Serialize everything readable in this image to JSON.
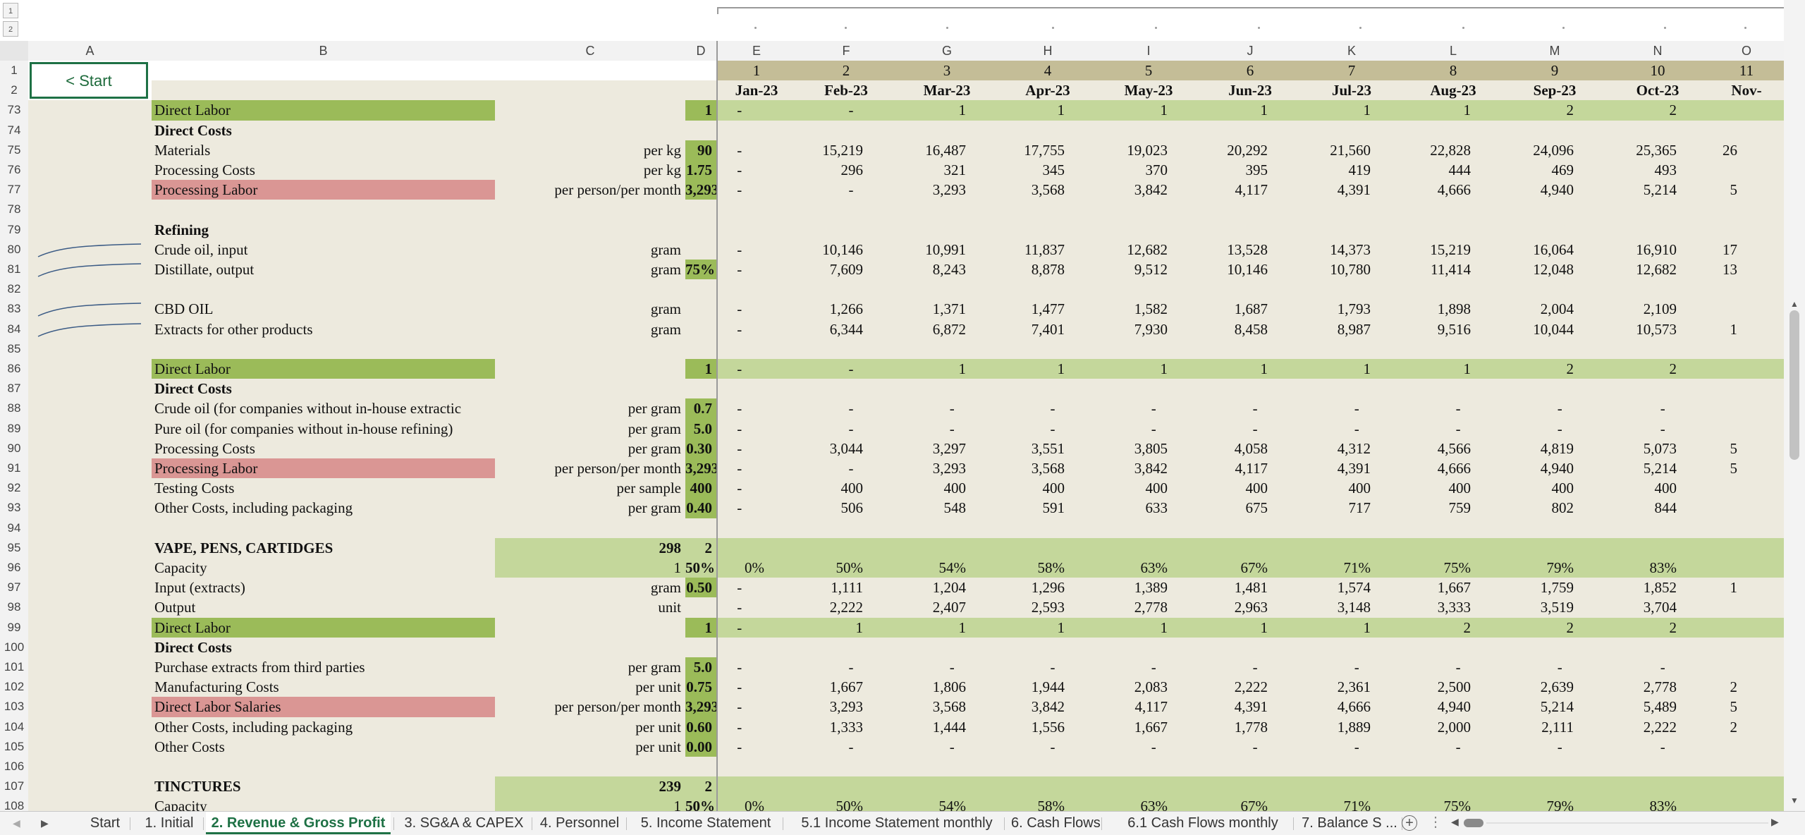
{
  "outline_levels": [
    "1",
    "2"
  ],
  "start_button": "< Start",
  "columns": [
    "A",
    "B",
    "C",
    "D",
    "E",
    "F",
    "G",
    "H",
    "I",
    "J",
    "K",
    "L",
    "M",
    "N",
    "O"
  ],
  "row1_months": [
    "1",
    "2",
    "3",
    "4",
    "5",
    "6",
    "7",
    "8",
    "9",
    "10",
    "11"
  ],
  "row2_dates": [
    "Jan-23",
    "Feb-23",
    "Mar-23",
    "Apr-23",
    "May-23",
    "Jun-23",
    "Jul-23",
    "Aug-23",
    "Sep-23",
    "Oct-23",
    "Nov-"
  ],
  "rows": [
    {
      "n": "73",
      "label": "Direct Labor",
      "labelStyle": "green",
      "c": "",
      "d": "1",
      "dStyle": "green",
      "rowStyle": "lightgreen",
      "vals": [
        "-",
        "-",
        "1",
        "1",
        "1",
        "1",
        "1",
        "1",
        "2",
        "2",
        ""
      ]
    },
    {
      "n": "74",
      "label": "Direct Costs",
      "bold": true,
      "vals": []
    },
    {
      "n": "75",
      "label": "Materials",
      "c": "per kg",
      "d": "90",
      "dStyle": "green",
      "vals": [
        "-",
        "15,219",
        "16,487",
        "17,755",
        "19,023",
        "20,292",
        "21,560",
        "22,828",
        "24,096",
        "25,365",
        "26"
      ]
    },
    {
      "n": "76",
      "label": "Processing Costs",
      "c": "per kg",
      "d": "1.75",
      "dStyle": "green",
      "vals": [
        "-",
        "296",
        "321",
        "345",
        "370",
        "395",
        "419",
        "444",
        "469",
        "493",
        ""
      ]
    },
    {
      "n": "77",
      "label": "Processing Labor",
      "labelStyle": "red",
      "c": "per person/per month",
      "d": "3,293",
      "dStyle": "green",
      "vals": [
        "-",
        "-",
        "3,293",
        "3,568",
        "3,842",
        "4,117",
        "4,391",
        "4,666",
        "4,940",
        "5,214",
        "5"
      ]
    },
    {
      "n": "78",
      "label": "",
      "vals": []
    },
    {
      "n": "79",
      "label": "Refining",
      "bold": true,
      "vals": []
    },
    {
      "n": "80",
      "label": "Crude oil, input",
      "c": "gram",
      "d": "",
      "spark": true,
      "vals": [
        "-",
        "10,146",
        "10,991",
        "11,837",
        "12,682",
        "13,528",
        "14,373",
        "15,219",
        "16,064",
        "16,910",
        "17"
      ]
    },
    {
      "n": "81",
      "label": "Distillate, output",
      "c": "gram",
      "d": "75%",
      "dStyle": "green",
      "spark": true,
      "vals": [
        "-",
        "7,609",
        "8,243",
        "8,878",
        "9,512",
        "10,146",
        "10,780",
        "11,414",
        "12,048",
        "12,682",
        "13"
      ]
    },
    {
      "n": "82",
      "label": "",
      "vals": []
    },
    {
      "n": "83",
      "label": "CBD OIL",
      "c": "gram",
      "d": "",
      "spark": true,
      "vals": [
        "-",
        "1,266",
        "1,371",
        "1,477",
        "1,582",
        "1,687",
        "1,793",
        "1,898",
        "2,004",
        "2,109",
        ""
      ]
    },
    {
      "n": "84",
      "label": "Extracts for other products",
      "c": "gram",
      "d": "",
      "spark": true,
      "vals": [
        "-",
        "6,344",
        "6,872",
        "7,401",
        "7,930",
        "8,458",
        "8,987",
        "9,516",
        "10,044",
        "10,573",
        "1"
      ]
    },
    {
      "n": "85",
      "label": "",
      "vals": []
    },
    {
      "n": "86",
      "label": "Direct Labor",
      "labelStyle": "green",
      "c": "",
      "d": "1",
      "dStyle": "green",
      "rowStyle": "lightgreen",
      "vals": [
        "-",
        "-",
        "1",
        "1",
        "1",
        "1",
        "1",
        "1",
        "2",
        "2",
        ""
      ]
    },
    {
      "n": "87",
      "label": "Direct Costs",
      "bold": true,
      "vals": []
    },
    {
      "n": "88",
      "label": "Crude oil (for companies without in-house extractic",
      "c": "per gram",
      "d": "0.7",
      "dStyle": "green",
      "vals": [
        "-",
        "-",
        "-",
        "-",
        "-",
        "-",
        "-",
        "-",
        "-",
        "-",
        ""
      ]
    },
    {
      "n": "89",
      "label": "Pure oil (for companies without in-house refining)",
      "c": "per gram",
      "d": "5.0",
      "dStyle": "green",
      "vals": [
        "-",
        "-",
        "-",
        "-",
        "-",
        "-",
        "-",
        "-",
        "-",
        "-",
        ""
      ]
    },
    {
      "n": "90",
      "label": "Processing Costs",
      "c": "per gram",
      "d": "0.30",
      "dStyle": "green",
      "vals": [
        "-",
        "3,044",
        "3,297",
        "3,551",
        "3,805",
        "4,058",
        "4,312",
        "4,566",
        "4,819",
        "5,073",
        "5"
      ]
    },
    {
      "n": "91",
      "label": "Processing Labor",
      "labelStyle": "red",
      "c": "per person/per month",
      "d": "3,293",
      "dStyle": "green",
      "vals": [
        "-",
        "-",
        "3,293",
        "3,568",
        "3,842",
        "4,117",
        "4,391",
        "4,666",
        "4,940",
        "5,214",
        "5"
      ]
    },
    {
      "n": "92",
      "label": "Testing Costs",
      "c": "per sample",
      "d": "400",
      "dStyle": "green",
      "vals": [
        "-",
        "400",
        "400",
        "400",
        "400",
        "400",
        "400",
        "400",
        "400",
        "400",
        ""
      ]
    },
    {
      "n": "93",
      "label": "Other Costs, including packaging",
      "c": "per gram",
      "d": "0.40",
      "dStyle": "green",
      "vals": [
        "-",
        "506",
        "548",
        "591",
        "633",
        "675",
        "717",
        "759",
        "802",
        "844",
        ""
      ]
    },
    {
      "n": "94",
      "label": "",
      "vals": []
    },
    {
      "n": "95",
      "label": "VAPE, PENS, CARTIDGES",
      "bold": true,
      "c": "298",
      "cBold": true,
      "d": "2",
      "rowStyle": "lightgreen",
      "fromC": true,
      "vals": [
        "",
        "",
        "",
        "",
        "",
        "",
        "",
        "",
        "",
        "",
        ""
      ]
    },
    {
      "n": "96",
      "label": "Capacity",
      "c": "1",
      "d": "50%",
      "rowStyle": "lightgreen",
      "fromC": true,
      "vals": [
        "0%",
        "50%",
        "54%",
        "58%",
        "63%",
        "67%",
        "71%",
        "75%",
        "79%",
        "83%",
        ""
      ]
    },
    {
      "n": "97",
      "label": "Input (extracts)",
      "c": "gram",
      "d": "0.50",
      "dStyle": "green",
      "vals": [
        "-",
        "1,111",
        "1,204",
        "1,296",
        "1,389",
        "1,481",
        "1,574",
        "1,667",
        "1,759",
        "1,852",
        "1"
      ]
    },
    {
      "n": "98",
      "label": "Output",
      "c": "unit",
      "d": "",
      "vals": [
        "-",
        "2,222",
        "2,407",
        "2,593",
        "2,778",
        "2,963",
        "3,148",
        "3,333",
        "3,519",
        "3,704",
        ""
      ]
    },
    {
      "n": "99",
      "label": "Direct Labor",
      "labelStyle": "green",
      "c": "",
      "d": "1",
      "dStyle": "green",
      "rowStyle": "lightgreen",
      "vals": [
        "-",
        "1",
        "1",
        "1",
        "1",
        "1",
        "1",
        "2",
        "2",
        "2",
        ""
      ]
    },
    {
      "n": "100",
      "label": "Direct Costs",
      "bold": true,
      "vals": []
    },
    {
      "n": "101",
      "label": "Purchase extracts from third parties",
      "c": "per gram",
      "d": "5.0",
      "dStyle": "green",
      "vals": [
        "-",
        "-",
        "-",
        "-",
        "-",
        "-",
        "-",
        "-",
        "-",
        "-",
        ""
      ]
    },
    {
      "n": "102",
      "label": "Manufacturing Costs",
      "c": "per unit",
      "d": "0.75",
      "dStyle": "green",
      "vals": [
        "-",
        "1,667",
        "1,806",
        "1,944",
        "2,083",
        "2,222",
        "2,361",
        "2,500",
        "2,639",
        "2,778",
        "2"
      ]
    },
    {
      "n": "103",
      "label": "Direct Labor Salaries",
      "labelStyle": "red",
      "c": "per person/per month",
      "d": "3,293",
      "dStyle": "green",
      "vals": [
        "-",
        "3,293",
        "3,568",
        "3,842",
        "4,117",
        "4,391",
        "4,666",
        "4,940",
        "5,214",
        "5,489",
        "5"
      ]
    },
    {
      "n": "104",
      "label": "Other Costs, including packaging",
      "c": "per unit",
      "d": "0.60",
      "dStyle": "green",
      "vals": [
        "-",
        "1,333",
        "1,444",
        "1,556",
        "1,667",
        "1,778",
        "1,889",
        "2,000",
        "2,111",
        "2,222",
        "2"
      ]
    },
    {
      "n": "105",
      "label": "Other Costs",
      "c": "per unit",
      "d": "0.00",
      "dStyle": "green",
      "vals": [
        "-",
        "-",
        "-",
        "-",
        "-",
        "-",
        "-",
        "-",
        "-",
        "-",
        ""
      ]
    },
    {
      "n": "106",
      "label": "",
      "vals": []
    },
    {
      "n": "107",
      "label": "TINCTURES",
      "bold": true,
      "c": "239",
      "cBold": true,
      "d": "2",
      "rowStyle": "lightgreen",
      "fromC": true,
      "vals": [
        "",
        "",
        "",
        "",
        "",
        "",
        "",
        "",
        "",
        "",
        ""
      ]
    },
    {
      "n": "108",
      "label": "Capacity",
      "c": "1",
      "d": "50%",
      "rowStyle": "lightgreen",
      "fromC": true,
      "vals": [
        "0%",
        "50%",
        "54%",
        "58%",
        "63%",
        "67%",
        "71%",
        "75%",
        "79%",
        "83%",
        ""
      ]
    }
  ],
  "tabs": [
    "Start",
    "1. Initial",
    "2. Revenue & Gross Profit",
    "3. SG&A & CAPEX",
    "4. Personnel",
    "5. Income Statement",
    "5.1 Income Statement monthly",
    "6. Cash Flows",
    "6.1 Cash Flows monthly",
    "7. Balance S ..."
  ],
  "active_tab": "2. Revenue & Gross Profit",
  "colors": {
    "green": "#9bbb59",
    "lightgreen": "#c4d79b",
    "red": "#da9694",
    "tan": "#c4bd97",
    "active_tab": "#1e7145"
  }
}
